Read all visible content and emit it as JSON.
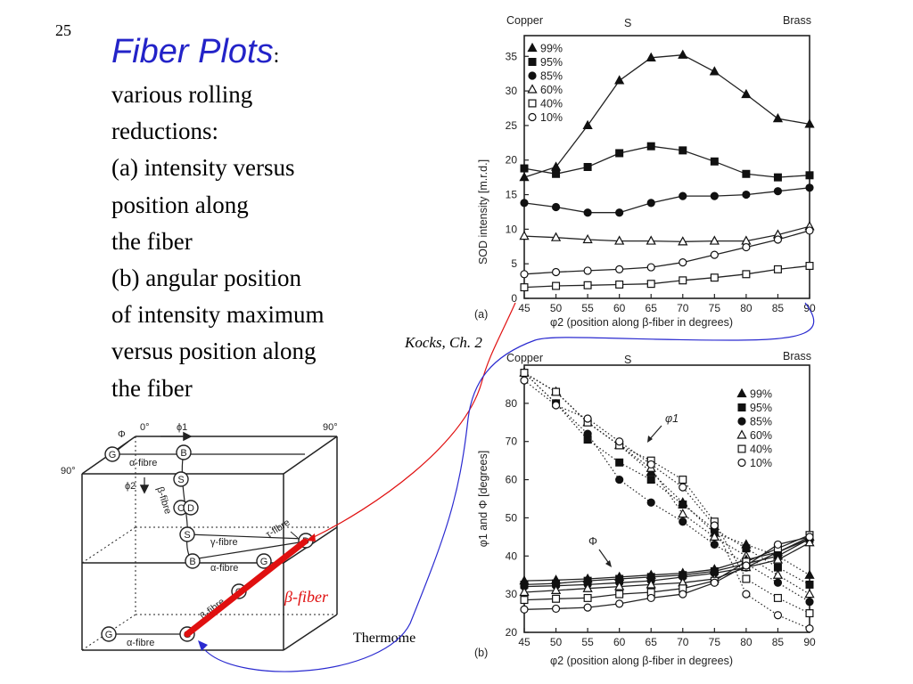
{
  "slide": {
    "number": "25",
    "title": "Fiber Plots",
    "title_colon": ":",
    "body_lines": [
      "various rolling",
      "reductions:",
      "(a)  intensity versus",
      "position along",
      "the fiber",
      "(b) angular position",
      "of intensity maximum",
      "versus position along",
      "the fiber"
    ],
    "citation": "Kocks, Ch. 2",
    "footer_fragment": "Thermome"
  },
  "colors": {
    "title": "#2323c8",
    "red_arrow": "#e01010",
    "blue_arrow": "#2a2ad0",
    "beta_fiber": "#e01010"
  },
  "chart_data": [
    {
      "type": "line",
      "panel_label": "(a)",
      "top_labels": [
        "Copper",
        "S",
        "Brass"
      ],
      "xlabel": "φ2  (position along β-fiber in degrees)",
      "ylabel": "SOD intensity [m.r.d.]",
      "x": [
        45,
        50,
        55,
        60,
        65,
        70,
        75,
        80,
        85,
        90
      ],
      "xlim": [
        45,
        90
      ],
      "ylim": [
        0,
        38
      ],
      "yticks": [
        0,
        5,
        10,
        15,
        20,
        25,
        30,
        35
      ],
      "xticks": [
        45,
        50,
        55,
        60,
        65,
        70,
        75,
        80,
        85,
        90
      ],
      "legend_position": "top-left",
      "series": [
        {
          "name": "99%",
          "marker": "triangle-filled",
          "values": [
            17.5,
            19,
            25,
            31.5,
            34.8,
            35.2,
            32.8,
            29.5,
            26,
            25.2
          ]
        },
        {
          "name": "95%",
          "marker": "square-filled",
          "values": [
            18.8,
            18,
            19,
            21,
            22,
            21.4,
            19.8,
            18,
            17.5,
            17.8
          ]
        },
        {
          "name": "85%",
          "marker": "circle-filled",
          "values": [
            13.8,
            13.2,
            12.4,
            12.4,
            13.8,
            14.8,
            14.8,
            15,
            15.5,
            16
          ]
        },
        {
          "name": "60%",
          "marker": "triangle-open",
          "values": [
            9,
            8.8,
            8.5,
            8.3,
            8.3,
            8.2,
            8.3,
            8.3,
            9.2,
            10.4
          ]
        },
        {
          "name": "40%",
          "marker": "square-open",
          "values": [
            1.6,
            1.8,
            1.9,
            2,
            2.1,
            2.6,
            3,
            3.5,
            4.2,
            4.7
          ]
        },
        {
          "name": "10%",
          "marker": "circle-open",
          "values": [
            3.5,
            3.8,
            4,
            4.2,
            4.5,
            5.2,
            6.3,
            7.4,
            8.5,
            9.8
          ]
        }
      ]
    },
    {
      "type": "line",
      "panel_label": "(b)",
      "top_labels": [
        "Copper",
        "S",
        "Brass"
      ],
      "xlabel": "φ2  (position along β-fiber in degrees)",
      "ylabel": "φ1 and Φ [degrees]",
      "x": [
        45,
        50,
        55,
        60,
        65,
        70,
        75,
        80,
        85,
        90
      ],
      "xlim": [
        45,
        90
      ],
      "ylim": [
        20,
        90
      ],
      "yticks": [
        20,
        30,
        40,
        50,
        60,
        70,
        80
      ],
      "xticks": [
        45,
        50,
        55,
        60,
        65,
        70,
        75,
        80,
        85,
        90
      ],
      "legend_position": "top-right",
      "annotations": [
        "φ1",
        "Φ"
      ],
      "phi1_series": [
        {
          "name": "99%",
          "marker": "triangle-filled",
          "values": [
            88,
            83,
            75,
            69,
            62,
            54,
            46,
            43,
            40,
            35
          ]
        },
        {
          "name": "95%",
          "marker": "square-filled",
          "values": [
            88,
            80,
            70.5,
            64.5,
            60,
            53.5,
            47,
            42,
            37,
            32.5
          ]
        },
        {
          "name": "85%",
          "marker": "circle-filled",
          "values": [
            88,
            80,
            72,
            60,
            54,
            49,
            43,
            38,
            33,
            28
          ]
        },
        {
          "name": "60%",
          "marker": "triangle-open",
          "values": [
            88,
            83,
            75,
            69,
            63,
            51,
            45,
            40,
            35,
            30
          ]
        },
        {
          "name": "40%",
          "marker": "square-open",
          "values": [
            88,
            83,
            75,
            69,
            65,
            60,
            49,
            34,
            29,
            25
          ]
        },
        {
          "name": "10%",
          "marker": "circle-open",
          "values": [
            86,
            79.5,
            76,
            70,
            64,
            58,
            48,
            30,
            24.5,
            21
          ]
        }
      ],
      "phi_series": [
        {
          "name": "99%",
          "marker": "triangle-filled",
          "values": [
            33.5,
            33.7,
            34,
            34.5,
            35,
            35.5,
            36.5,
            39,
            41,
            45
          ]
        },
        {
          "name": "95%",
          "marker": "square-filled",
          "values": [
            32.5,
            32.8,
            33.5,
            34,
            34.5,
            35,
            36,
            38,
            40,
            44.5
          ]
        },
        {
          "name": "85%",
          "marker": "circle-filled",
          "values": [
            32,
            32.2,
            32.5,
            33,
            33.5,
            34.5,
            35.5,
            37,
            41,
            44.5
          ]
        },
        {
          "name": "60%",
          "marker": "triangle-open",
          "values": [
            30.5,
            31,
            31.5,
            32,
            32.5,
            33,
            34,
            37,
            39,
            43.5
          ]
        },
        {
          "name": "40%",
          "marker": "square-open",
          "values": [
            28.5,
            28.8,
            29,
            30,
            30.5,
            31.5,
            33.5,
            38.5,
            42,
            45.5
          ]
        },
        {
          "name": "10%",
          "marker": "circle-open",
          "values": [
            26,
            26.2,
            26.5,
            27.5,
            29,
            30,
            33,
            37.5,
            43,
            45
          ]
        }
      ]
    }
  ],
  "cube": {
    "labels": {
      "Phi": "Φ",
      "zero": "0°",
      "phi1": "ϕ1",
      "ninety_tr": "90°",
      "ninety_l": "90°",
      "phi2": "ϕ2",
      "alpha1": "α-fibre",
      "alpha2": "α-fibre",
      "alpha3": "α-fibre",
      "beta_vertical": "β-fibre",
      "gamma": "γ-fibre",
      "tau": "τ-fibre",
      "beta_diag": "β-fibre",
      "G": "G",
      "B": "B",
      "S": "S",
      "C": "C",
      "D": "D"
    },
    "beta_fiber_label": "β-fiber"
  }
}
